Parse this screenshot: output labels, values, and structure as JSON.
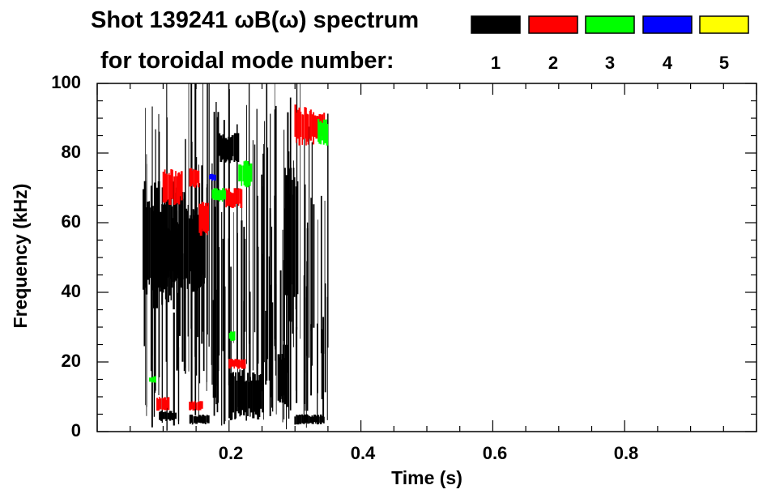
{
  "chart_data": {
    "type": "heatmap",
    "title": "Shot 139241 ωB(ω) spectrum",
    "subtitle": "for toroidal mode number:",
    "xlabel": "Time (s)",
    "ylabel": "Frequency (kHz)",
    "xlim": [
      0.0,
      1.0
    ],
    "ylim": [
      0,
      100
    ],
    "x_ticks": [
      {
        "value": 0.2,
        "label": "0.2"
      },
      {
        "value": 0.4,
        "label": "0.4"
      },
      {
        "value": 0.6,
        "label": "0.6"
      },
      {
        "value": 0.8,
        "label": "0.8"
      }
    ],
    "y_ticks": [
      {
        "value": 0,
        "label": "0"
      },
      {
        "value": 20,
        "label": "20"
      },
      {
        "value": 40,
        "label": "40"
      },
      {
        "value": 60,
        "label": "60"
      },
      {
        "value": 80,
        "label": "80"
      },
      {
        "value": 100,
        "label": "100"
      }
    ],
    "legend": [
      {
        "mode": "1",
        "color": "#000000"
      },
      {
        "mode": "2",
        "color": "#ff0000"
      },
      {
        "mode": "3",
        "color": "#00ff00"
      },
      {
        "mode": "4",
        "color": "#0000ff"
      },
      {
        "mode": "5",
        "color": "#ffff00"
      }
    ],
    "blobs": [
      {
        "mode": 1,
        "t0": 0.07,
        "t1": 0.135,
        "f0": 35,
        "f1": 72
      },
      {
        "mode": 1,
        "t0": 0.09,
        "t1": 0.125,
        "f0": 42,
        "f1": 62
      },
      {
        "mode": 1,
        "t0": 0.135,
        "t1": 0.165,
        "f0": 40,
        "f1": 66
      },
      {
        "mode": 1,
        "t0": 0.185,
        "t1": 0.215,
        "f0": 77,
        "f1": 86
      },
      {
        "mode": 1,
        "t0": 0.2,
        "t1": 0.25,
        "f0": 3,
        "f1": 18
      },
      {
        "mode": 1,
        "t0": 0.285,
        "t1": 0.305,
        "f0": 30,
        "f1": 80
      },
      {
        "mode": 1,
        "t0": 0.275,
        "t1": 0.29,
        "f0": 7,
        "f1": 25
      },
      {
        "mode": 1,
        "t0": 0.095,
        "t1": 0.12,
        "f0": 3,
        "f1": 6
      },
      {
        "mode": 1,
        "t0": 0.14,
        "t1": 0.17,
        "f0": 2,
        "f1": 5
      },
      {
        "mode": 1,
        "t0": 0.3,
        "t1": 0.345,
        "f0": 2,
        "f1": 5
      },
      {
        "mode": 2,
        "t0": 0.1,
        "t1": 0.13,
        "f0": 65,
        "f1": 76
      },
      {
        "mode": 2,
        "t0": 0.14,
        "t1": 0.155,
        "f0": 70,
        "f1": 76
      },
      {
        "mode": 2,
        "t0": 0.155,
        "t1": 0.17,
        "f0": 56,
        "f1": 66
      },
      {
        "mode": 2,
        "t0": 0.195,
        "t1": 0.22,
        "f0": 64,
        "f1": 70
      },
      {
        "mode": 2,
        "t0": 0.2,
        "t1": 0.225,
        "f0": 18,
        "f1": 21
      },
      {
        "mode": 2,
        "t0": 0.3,
        "t1": 0.33,
        "f0": 82,
        "f1": 94
      },
      {
        "mode": 2,
        "t0": 0.33,
        "t1": 0.345,
        "f0": 84,
        "f1": 92
      },
      {
        "mode": 2,
        "t0": 0.09,
        "t1": 0.11,
        "f0": 6,
        "f1": 10
      },
      {
        "mode": 2,
        "t0": 0.14,
        "t1": 0.16,
        "f0": 6,
        "f1": 9
      },
      {
        "mode": 3,
        "t0": 0.215,
        "t1": 0.235,
        "f0": 70,
        "f1": 78
      },
      {
        "mode": 3,
        "t0": 0.175,
        "t1": 0.195,
        "f0": 66,
        "f1": 70
      },
      {
        "mode": 3,
        "t0": 0.335,
        "t1": 0.35,
        "f0": 82,
        "f1": 90
      },
      {
        "mode": 3,
        "t0": 0.08,
        "t1": 0.09,
        "f0": 14,
        "f1": 16
      },
      {
        "mode": 3,
        "t0": 0.2,
        "t1": 0.21,
        "f0": 26,
        "f1": 29
      },
      {
        "mode": 4,
        "t0": 0.17,
        "t1": 0.18,
        "f0": 72,
        "f1": 74
      }
    ]
  }
}
